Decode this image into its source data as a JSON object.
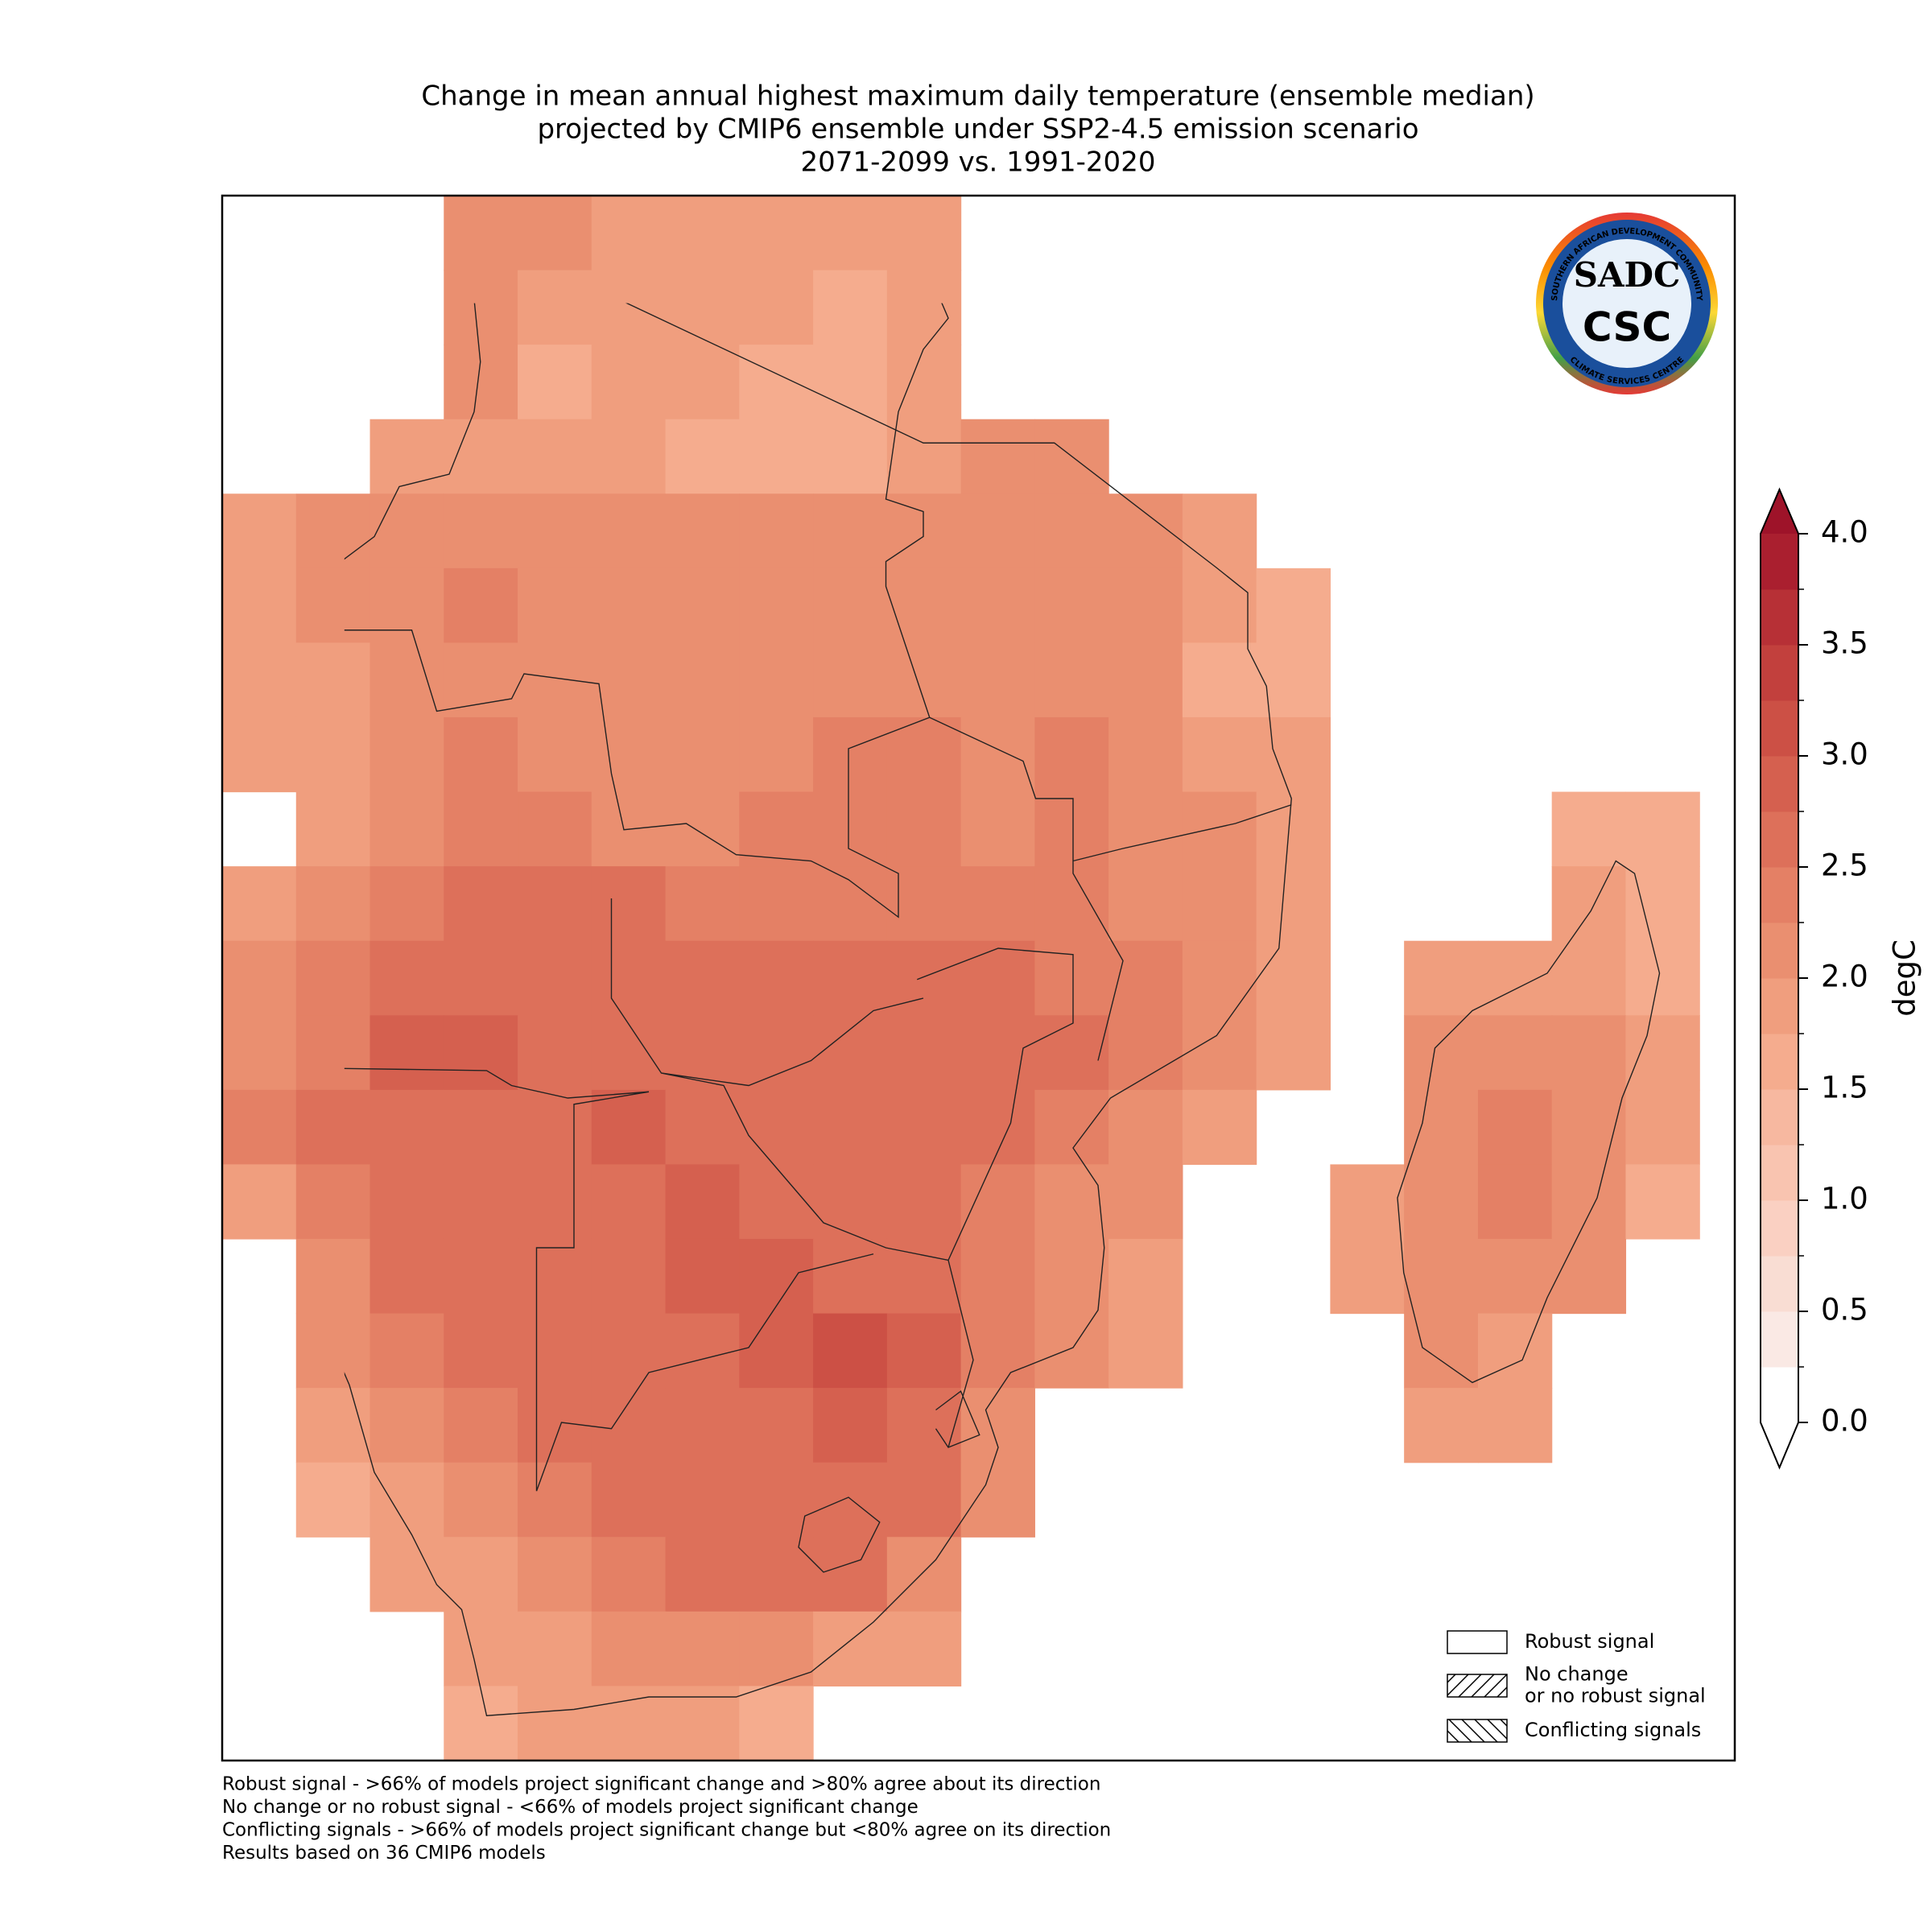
{
  "chart_data": {
    "type": "map",
    "title": [
      "Change in mean annual highest maximum daily temperature (ensemble median)",
      "projected by CMIP6 ensemble under SSP2-4.5 emission scenario",
      "2071-2099 vs. 1991-2020"
    ],
    "values": [
      [
        null,
        null,
        null,
        2.1,
        2.0,
        1.9,
        1.9,
        1.9,
        1.9,
        1.9,
        null,
        null,
        null,
        null,
        null,
        null,
        null,
        null,
        null,
        null,
        null
      ],
      [
        null,
        null,
        null,
        2.0,
        1.8,
        1.8,
        1.8,
        1.8,
        1.7,
        1.9,
        null,
        null,
        null,
        null,
        null,
        null,
        null,
        null,
        null,
        null,
        null
      ],
      [
        null,
        null,
        null,
        2.0,
        1.7,
        1.8,
        1.8,
        1.7,
        1.6,
        1.9,
        null,
        null,
        null,
        null,
        null,
        null,
        null,
        null,
        null,
        null,
        null
      ],
      [
        null,
        null,
        1.9,
        1.8,
        1.8,
        1.8,
        1.7,
        1.7,
        1.7,
        1.9,
        2.0,
        2.0,
        null,
        null,
        null,
        null,
        null,
        null,
        null,
        null,
        null
      ],
      [
        1.9,
        2.0,
        2.1,
        2.1,
        2.0,
        2.0,
        2.0,
        2.0,
        2.0,
        2.1,
        2.1,
        2.1,
        2.1,
        1.9,
        null,
        null,
        null,
        null,
        null,
        null,
        null
      ],
      [
        1.9,
        2.1,
        2.2,
        2.3,
        2.1,
        2.1,
        2.1,
        2.1,
        2.1,
        2.1,
        2.1,
        2.2,
        2.1,
        1.8,
        1.7,
        null,
        null,
        null,
        null,
        null,
        null
      ],
      [
        1.9,
        1.8,
        2.0,
        2.2,
        2.1,
        2.1,
        2.1,
        2.1,
        2.1,
        2.2,
        2.2,
        2.2,
        2.0,
        1.7,
        1.7,
        null,
        null,
        null,
        null,
        null,
        null
      ],
      [
        1.8,
        1.9,
        2.1,
        2.3,
        2.2,
        2.1,
        2.1,
        2.1,
        2.3,
        2.3,
        2.2,
        2.3,
        2.1,
        1.9,
        1.8,
        null,
        null,
        null,
        null,
        null,
        null
      ],
      [
        null,
        1.9,
        2.2,
        2.4,
        2.4,
        2.2,
        2.2,
        2.3,
        2.3,
        2.3,
        2.2,
        2.3,
        2.1,
        2.0,
        1.8,
        null,
        null,
        null,
        1.7,
        1.7,
        null
      ],
      [
        1.9,
        2.1,
        2.3,
        2.5,
        2.6,
        2.5,
        2.4,
        2.4,
        2.4,
        2.4,
        2.4,
        2.3,
        2.1,
        2.0,
        1.9,
        null,
        null,
        null,
        1.8,
        1.7,
        null
      ],
      [
        2.2,
        2.3,
        2.6,
        2.7,
        2.7,
        2.6,
        2.6,
        2.6,
        2.5,
        2.5,
        2.5,
        2.4,
        2.3,
        2.1,
        1.9,
        null,
        1.9,
        1.9,
        1.9,
        1.7,
        null
      ],
      [
        2.2,
        2.4,
        2.8,
        2.8,
        2.7,
        2.6,
        2.6,
        2.6,
        2.6,
        2.6,
        2.6,
        2.5,
        2.3,
        2.0,
        1.9,
        null,
        2.0,
        2.2,
        2.1,
        1.8,
        null
      ],
      [
        2.3,
        2.5,
        2.7,
        2.7,
        2.7,
        2.8,
        2.7,
        2.7,
        2.7,
        2.7,
        2.6,
        2.3,
        2.0,
        1.9,
        null,
        null,
        2.0,
        2.4,
        2.2,
        1.8,
        null
      ],
      [
        1.9,
        2.4,
        2.6,
        2.6,
        2.7,
        2.7,
        2.8,
        2.7,
        2.6,
        2.6,
        2.4,
        2.2,
        2.0,
        null,
        null,
        1.9,
        2.0,
        2.3,
        2.2,
        1.7,
        null
      ],
      [
        null,
        2.0,
        2.5,
        2.6,
        2.6,
        2.7,
        2.9,
        2.8,
        2.6,
        2.6,
        2.3,
        2.1,
        1.8,
        null,
        null,
        1.9,
        2.2,
        2.1,
        2.0,
        null,
        null
      ],
      [
        null,
        2.0,
        2.3,
        2.6,
        2.6,
        2.6,
        2.7,
        2.9,
        3.0,
        2.9,
        2.3,
        2.1,
        1.8,
        null,
        null,
        null,
        2.0,
        1.9,
        null,
        null,
        null
      ],
      [
        null,
        1.9,
        2.2,
        2.4,
        2.5,
        2.5,
        2.6,
        2.7,
        2.8,
        2.7,
        2.2,
        null,
        null,
        null,
        null,
        null,
        1.8,
        1.8,
        null,
        null,
        null
      ],
      [
        null,
        1.6,
        1.8,
        2.2,
        2.3,
        2.5,
        2.6,
        2.6,
        2.6,
        2.5,
        2.2,
        null,
        null,
        null,
        null,
        null,
        null,
        null,
        null,
        null,
        null
      ],
      [
        null,
        null,
        1.8,
        1.9,
        2.1,
        2.3,
        2.5,
        2.5,
        2.6,
        2.0,
        null,
        null,
        null,
        null,
        null,
        null,
        null,
        null,
        null,
        null,
        null
      ],
      [
        null,
        null,
        null,
        1.8,
        1.9,
        2.0,
        2.1,
        2.1,
        1.9,
        1.8,
        null,
        null,
        null,
        null,
        null,
        null,
        null,
        null,
        null,
        null,
        null
      ],
      [
        null,
        null,
        null,
        1.7,
        1.8,
        1.8,
        1.8,
        1.7,
        null,
        null,
        null,
        null,
        null,
        null,
        null,
        null,
        null,
        null,
        null,
        null,
        null
      ]
    ],
    "colorbar": {
      "label": "degC",
      "levels": [
        0,
        0.25,
        0.5,
        0.75,
        1,
        1.25,
        1.5,
        1.75,
        2,
        2.25,
        2.5,
        2.75,
        3,
        3.25,
        3.5,
        3.75,
        4
      ],
      "colors": [
        "#ffffff",
        "#fae9e4",
        "#f9ddd3",
        "#fad0c2",
        "#f9c4b0",
        "#f7b8a0",
        "#f5ac8e",
        "#f09e7e",
        "#ea8f70",
        "#e48065",
        "#dd705a",
        "#d5604f",
        "#cc5045",
        "#c2403d",
        "#b73036",
        "#aa1f2f"
      ],
      "under_color": "#ffffff",
      "over_color": "#9e1329",
      "ticks": [
        {
          "value": 0,
          "label": "0.0"
        },
        {
          "value": 0.5,
          "label": "0.5"
        },
        {
          "value": 1,
          "label": "1.0"
        },
        {
          "value": 1.5,
          "label": "1.5"
        },
        {
          "value": 2,
          "label": "2.0"
        },
        {
          "value": 2.5,
          "label": "2.5"
        },
        {
          "value": 3,
          "label": "3.0"
        },
        {
          "value": 3.5,
          "label": "3.5"
        },
        {
          "value": 4,
          "label": "4.0"
        }
      ]
    },
    "legend": [
      {
        "label": [
          "Robust signal"
        ],
        "hatch": "none"
      },
      {
        "label": [
          "No change",
          "or no robust signal"
        ],
        "hatch": "forward"
      },
      {
        "label": [
          "Conflicting signals"
        ],
        "hatch": "back"
      }
    ],
    "footnotes": [
      "Robust signal - >66% of models project significant change and >80% agree about its direction",
      "No change or no robust signal - <66% of models project significant change",
      "Conflicting signals - >66% of models project significant change but <80% agree on its direction",
      "Results based on 36 CMIP6 models"
    ],
    "logo": {
      "top": "SOUTHERN AFRICAN DEVELOPMENT COMMUNITY",
      "bottom": "CLIMATE SERVICES CENTRE",
      "mark": "SADC",
      "short": "CSC"
    }
  }
}
